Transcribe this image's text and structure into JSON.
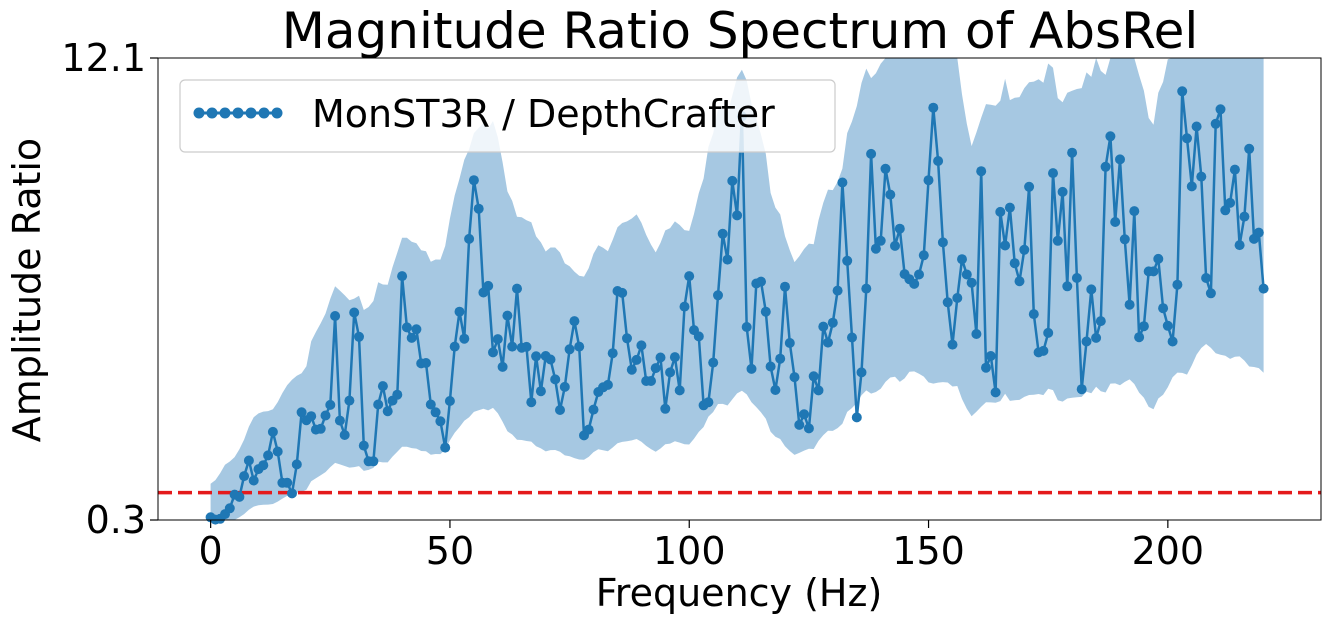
{
  "chart_data": {
    "type": "line",
    "title": "Magnitude Ratio Spectrum of AbsRel",
    "xlabel": "Frequency (Hz)",
    "ylabel": "Amplitude Ratio",
    "xlim": [
      -11,
      232
    ],
    "ylim": [
      0.3,
      12.1
    ],
    "x_ticks": [
      0,
      50,
      100,
      150,
      200
    ],
    "x_tick_labels": [
      "0",
      "50",
      "100",
      "150",
      "200"
    ],
    "y_ticks": [
      0.3,
      12.1
    ],
    "y_tick_labels": [
      "0.3",
      "12.1"
    ],
    "legend": {
      "position": "top-left",
      "entries": [
        "MonST3R / DepthCrafter"
      ]
    },
    "reference_line": {
      "y": 1.0,
      "style": "dashed",
      "color": "#e41a1c"
    },
    "colors": {
      "line": "#1f77b4",
      "band": "#a6c8e2"
    },
    "series": [
      {
        "name": "MonST3R / DepthCrafter",
        "x_start": 0,
        "x_step": 1,
        "values": [
          0.37,
          0.31,
          0.33,
          0.45,
          0.6,
          0.95,
          0.89,
          1.42,
          1.82,
          1.31,
          1.6,
          1.7,
          1.95,
          2.55,
          2.05,
          1.25,
          1.25,
          0.98,
          1.72,
          3.05,
          2.85,
          2.95,
          2.61,
          2.63,
          2.97,
          3.24,
          5.51,
          2.84,
          2.47,
          3.35,
          5.6,
          4.98,
          2.2,
          1.8,
          1.8,
          3.25,
          3.72,
          3.08,
          3.35,
          3.5,
          6.53,
          5.22,
          4.95,
          5.17,
          4.3,
          4.31,
          3.25,
          3.05,
          2.82,
          2.15,
          3.34,
          4.73,
          5.62,
          4.93,
          7.48,
          8.98,
          8.25,
          6.11,
          6.28,
          4.58,
          4.92,
          4.21,
          5.52,
          4.73,
          6.21,
          4.7,
          4.72,
          3.31,
          4.48,
          3.59,
          4.49,
          4.4,
          3.89,
          3.11,
          3.7,
          4.66,
          5.38,
          4.73,
          2.46,
          2.61,
          3.12,
          3.57,
          3.69,
          3.75,
          4.56,
          6.15,
          6.1,
          4.94,
          4.14,
          4.39,
          4.76,
          3.85,
          3.85,
          4.18,
          4.45,
          3.14,
          4.07,
          4.46,
          3.61,
          5.75,
          6.53,
          5.15,
          4.99,
          3.23,
          3.31,
          4.32,
          6.04,
          7.61,
          6.95,
          8.96,
          8.08,
          10.61,
          5.23,
          4.16,
          6.34,
          6.39,
          5.62,
          4.22,
          3.62,
          4.42,
          6.26,
          4.82,
          3.95,
          2.73,
          3.0,
          2.64,
          3.97,
          3.61,
          5.24,
          4.83,
          5.34,
          6.16,
          8.92,
          6.92,
          4.96,
          2.92,
          4.07,
          6.21,
          9.65,
          7.23,
          7.43,
          9.27,
          8.61,
          7.3,
          7.74,
          6.58,
          6.45,
          6.33,
          6.57,
          7.06,
          8.98,
          10.83,
          9.47,
          7.39,
          5.86,
          4.78,
          5.97,
          6.96,
          6.57,
          6.36,
          5.05,
          9.21,
          4.19,
          4.49,
          3.56,
          8.17,
          7.31,
          8.28,
          6.86,
          6.4,
          7.2,
          8.81,
          5.56,
          4.58,
          4.62,
          5.08,
          9.16,
          7.43,
          8.68,
          6.27,
          9.68,
          6.48,
          3.64,
          4.86,
          6.19,
          4.95,
          5.38,
          9.32,
          10.1,
          7.91,
          9.51,
          7.47,
          5.8,
          8.19,
          4.97,
          5.25,
          6.65,
          6.65,
          6.97,
          5.71,
          5.26,
          4.86,
          6.31,
          11.25,
          10.05,
          8.82,
          10.35,
          9.07,
          6.48,
          6.09,
          10.42,
          10.79,
          8.21,
          8.4,
          9.25,
          7.32,
          8.05,
          9.78,
          7.48,
          7.64,
          6.21
        ]
      }
    ]
  }
}
